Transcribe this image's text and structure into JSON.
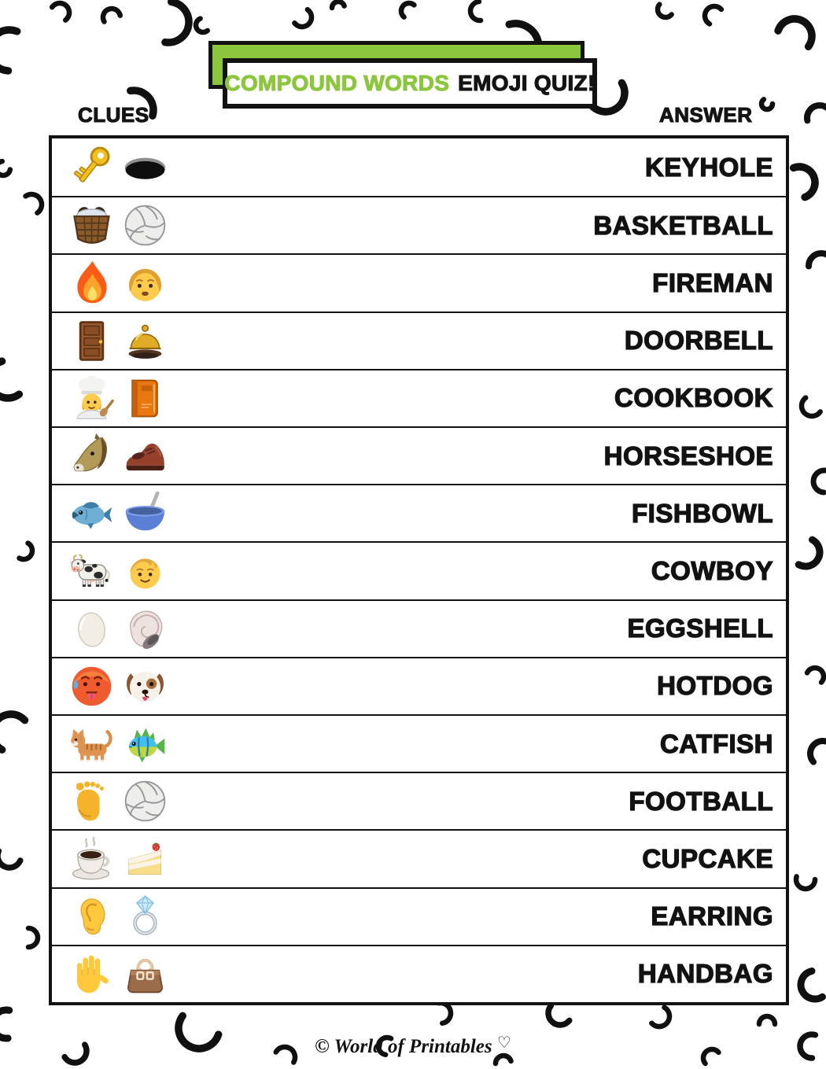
{
  "title": {
    "part1": "COMPOUND WORDS",
    "part2": "EMOJI QUIZ!"
  },
  "columns": {
    "clues": "CLUES",
    "answer": "ANSWER"
  },
  "colors": {
    "accent_green": "#8CC63E",
    "ink": "#121212",
    "paper": "#FFFFFF"
  },
  "rows": [
    {
      "answer": "KEYHOLE",
      "clues": [
        {
          "icon": "key",
          "char": "🔑"
        },
        {
          "icon": "hole",
          "char": "🕳️"
        }
      ]
    },
    {
      "answer": "BASKETBALL",
      "clues": [
        {
          "icon": "basket",
          "char": "🧺"
        },
        {
          "icon": "volleyball",
          "char": "🏐"
        }
      ]
    },
    {
      "answer": "FIREMAN",
      "clues": [
        {
          "icon": "fire",
          "char": "🔥"
        },
        {
          "icon": "man",
          "char": "👨"
        }
      ]
    },
    {
      "answer": "DOORBELL",
      "clues": [
        {
          "icon": "door",
          "char": "🚪"
        },
        {
          "icon": "bell",
          "char": "🛎️"
        }
      ]
    },
    {
      "answer": "COOKBOOK",
      "clues": [
        {
          "icon": "cook",
          "char": "🧑‍🍳"
        },
        {
          "icon": "book",
          "char": "📙"
        }
      ]
    },
    {
      "answer": "HORSESHOE",
      "clues": [
        {
          "icon": "horse",
          "char": "🐴"
        },
        {
          "icon": "shoe",
          "char": "👞"
        }
      ]
    },
    {
      "answer": "FISHBOWL",
      "clues": [
        {
          "icon": "fish",
          "char": "🐟"
        },
        {
          "icon": "bowl",
          "char": "🥣"
        }
      ]
    },
    {
      "answer": "COWBOY",
      "clues": [
        {
          "icon": "cow",
          "char": "🐄"
        },
        {
          "icon": "boy",
          "char": "👦"
        }
      ]
    },
    {
      "answer": "EGGSHELL",
      "clues": [
        {
          "icon": "egg",
          "char": "🥚"
        },
        {
          "icon": "shell",
          "char": "🐚"
        }
      ]
    },
    {
      "answer": "HOTDOG",
      "clues": [
        {
          "icon": "hotface",
          "char": "🥵"
        },
        {
          "icon": "dog",
          "char": "🐶"
        }
      ]
    },
    {
      "answer": "CATFISH",
      "clues": [
        {
          "icon": "cat",
          "char": "🐈"
        },
        {
          "icon": "tropicalfish",
          "char": "🐠"
        }
      ]
    },
    {
      "answer": "FOOTBALL",
      "clues": [
        {
          "icon": "foot",
          "char": "🦶"
        },
        {
          "icon": "volleyball",
          "char": "🏐"
        }
      ]
    },
    {
      "answer": "CUPCAKE",
      "clues": [
        {
          "icon": "coffee",
          "char": "☕"
        },
        {
          "icon": "cake",
          "char": "🍰"
        }
      ]
    },
    {
      "answer": "EARRING",
      "clues": [
        {
          "icon": "ear",
          "char": "👂"
        },
        {
          "icon": "ring",
          "char": "💍"
        }
      ]
    },
    {
      "answer": "HANDBAG",
      "clues": [
        {
          "icon": "hand",
          "char": "✋"
        },
        {
          "icon": "handbag",
          "char": "👜"
        }
      ]
    }
  ],
  "footer": {
    "copyright": "©",
    "brand": "World of Printables",
    "heart": "♡"
  }
}
